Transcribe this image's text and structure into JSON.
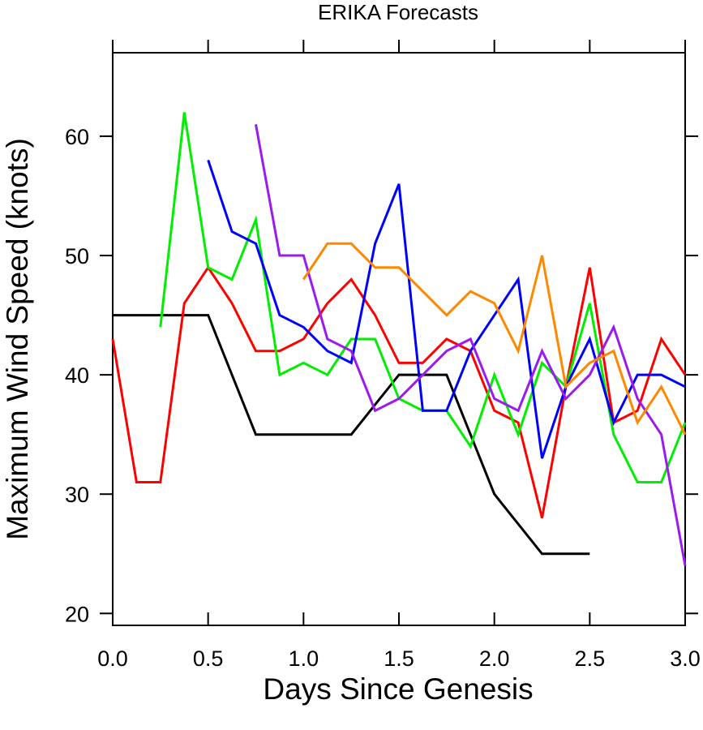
{
  "chart_data": {
    "type": "line",
    "title": "ERIKA Forecasts",
    "xlabel": "Days Since Genesis",
    "ylabel": "Maximum Wind Speed (knots)",
    "xlim": [
      0,
      3
    ],
    "ylim": [
      19,
      67
    ],
    "xticks": [
      "0.0",
      "0.5",
      "1.0",
      "1.5",
      "2.0",
      "2.5",
      "3.0"
    ],
    "yticks": [
      "20",
      "30",
      "40",
      "50",
      "60"
    ],
    "grid": false,
    "series": [
      {
        "color": "#000000",
        "x": [
          0,
          0.25,
          0.5,
          0.75,
          1.0,
          1.25,
          1.5,
          1.75,
          2.0,
          2.25,
          2.5
        ],
        "y": [
          45,
          45,
          45,
          35,
          35,
          35,
          40,
          40,
          30,
          25,
          25
        ]
      },
      {
        "color": "#ff0000",
        "x": [
          0,
          0.125,
          0.25,
          0.375,
          0.5,
          0.625,
          0.75,
          0.875,
          1.0,
          1.125,
          1.25,
          1.375,
          1.5,
          1.625,
          1.75,
          1.875,
          2.0,
          2.125,
          2.25,
          2.375,
          2.5,
          2.625,
          2.75,
          2.875,
          3.0
        ],
        "y": [
          43,
          31,
          31,
          46,
          49,
          46,
          42,
          42,
          43,
          46,
          48,
          45,
          41,
          41,
          43,
          42,
          37,
          36,
          28,
          39,
          49,
          36,
          37,
          43,
          40
        ]
      },
      {
        "color": "#00ee00",
        "x": [
          0.25,
          0.375,
          0.5,
          0.625,
          0.75,
          0.875,
          1.0,
          1.125,
          1.25,
          1.375,
          1.5,
          1.625,
          1.75,
          1.875,
          2.0,
          2.125,
          2.25,
          2.375,
          2.5,
          2.625,
          2.75,
          2.875,
          3.0
        ],
        "y": [
          44,
          62,
          49,
          48,
          53,
          40,
          41,
          40,
          43,
          43,
          38,
          37,
          37,
          34,
          40,
          35,
          41,
          39,
          46,
          35,
          31,
          31,
          36
        ]
      },
      {
        "color": "#0000ff",
        "x": [
          0.5,
          0.625,
          0.75,
          0.875,
          1.0,
          1.125,
          1.25,
          1.375,
          1.5,
          1.625,
          1.75,
          1.875,
          2.0,
          2.125,
          2.25,
          2.375,
          2.5,
          2.625,
          2.75,
          2.875,
          3.0
        ],
        "y": [
          58,
          52,
          51,
          45,
          44,
          42,
          41,
          51,
          56,
          37,
          37,
          42,
          45,
          48,
          33,
          39,
          43,
          36,
          40,
          40,
          39
        ]
      },
      {
        "color": "#9b1aee",
        "x": [
          0.75,
          0.875,
          1.0,
          1.125,
          1.25,
          1.375,
          1.5,
          1.625,
          1.75,
          1.875,
          2.0,
          2.125,
          2.25,
          2.375,
          2.5,
          2.625,
          2.75,
          2.875,
          3.0
        ],
        "y": [
          61,
          50,
          50,
          43,
          42,
          37,
          38,
          40,
          42,
          43,
          38,
          37,
          42,
          38,
          40,
          44,
          38,
          35,
          24
        ]
      },
      {
        "color": "#ff8800",
        "x": [
          1.0,
          1.125,
          1.25,
          1.375,
          1.5,
          1.625,
          1.75,
          1.875,
          2.0,
          2.125,
          2.25,
          2.375,
          2.5,
          2.625,
          2.75,
          2.875,
          3.0
        ],
        "y": [
          48,
          51,
          51,
          49,
          49,
          47,
          45,
          47,
          46,
          42,
          50,
          39,
          41,
          42,
          36,
          39,
          35
        ]
      }
    ]
  }
}
